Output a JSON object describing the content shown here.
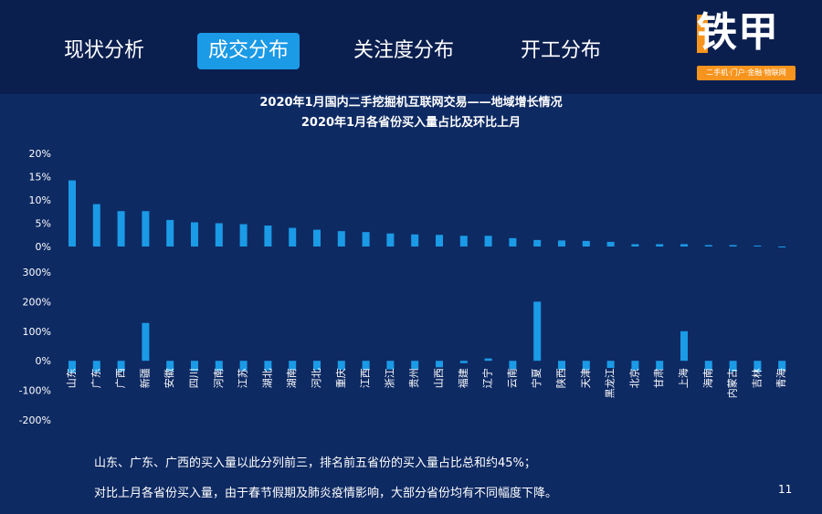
{
  "tabs": [
    {
      "label": "现状分析",
      "active": false
    },
    {
      "label": "成交分布",
      "active": true
    },
    {
      "label": "关注度分布",
      "active": false
    },
    {
      "label": "开工分布",
      "active": false
    }
  ],
  "logo": {
    "name": "铁甲",
    "tagline": "二手机·门户·金融·物联网",
    "accent_color": "#f7941d"
  },
  "chart": {
    "title": "2020年1月国内二手挖掘机互联网交易——地域增长情况",
    "subtitle": "2020年1月各省份买入量占比及环比上月"
  },
  "chart_data": [
    {
      "type": "bar",
      "categories": [
        "山东",
        "广东",
        "广西",
        "新疆",
        "安徽",
        "四川",
        "河南",
        "江苏",
        "湖北",
        "湖南",
        "河北",
        "重庆",
        "江西",
        "浙江",
        "贵州",
        "山西",
        "福建",
        "辽宁",
        "云南",
        "宁夏",
        "陕西",
        "天津",
        "黑龙江",
        "北京",
        "甘肃",
        "上海",
        "海南",
        "内蒙古",
        "吉林",
        "青海"
      ],
      "values": [
        14.2,
        9.1,
        7.6,
        7.6,
        5.7,
        5.2,
        5.0,
        4.8,
        4.5,
        4.0,
        3.6,
        3.3,
        3.1,
        2.8,
        2.6,
        2.5,
        2.3,
        2.3,
        1.8,
        1.4,
        1.3,
        1.2,
        1.0,
        0.5,
        0.5,
        0.5,
        0.3,
        0.3,
        0.2,
        0.0
      ],
      "ylim": [
        0,
        20
      ],
      "yticks": [
        "20%",
        "15%",
        "10%",
        "5%",
        "0%"
      ],
      "bar_color": "#1b9ae6"
    },
    {
      "type": "bar",
      "categories": [
        "山东",
        "广东",
        "广西",
        "新疆",
        "安徽",
        "四川",
        "河南",
        "江苏",
        "湖北",
        "湖南",
        "河北",
        "重庆",
        "江西",
        "浙江",
        "贵州",
        "山西",
        "福建",
        "辽宁",
        "云南",
        "宁夏",
        "陕西",
        "天津",
        "黑龙江",
        "北京",
        "甘肃",
        "上海",
        "海南",
        "内蒙古",
        "吉林",
        "青海"
      ],
      "values": [
        -40,
        -38,
        -36,
        128,
        -35,
        -35,
        -34,
        -33,
        -33,
        -32,
        -31,
        -30,
        -30,
        -29,
        -28,
        -22,
        -8,
        8,
        -28,
        200,
        -30,
        -31,
        -24,
        -31,
        -30,
        100,
        -32,
        -36,
        -38,
        -33
      ],
      "ylim": [
        -200,
        300
      ],
      "yticks": [
        "300%",
        "200%",
        "100%",
        "0%",
        "-100%",
        "-200%"
      ],
      "bar_color": "#1b9ae6"
    }
  ],
  "notes": [
    "山东、广东、广西的买入量以此分列前三，排名前五省份的买入量占比总和约45%；",
    "对比上月各省份买入量，由于春节假期及肺炎疫情影响，大部分省份均有不同幅度下降。"
  ],
  "page_number": "11"
}
